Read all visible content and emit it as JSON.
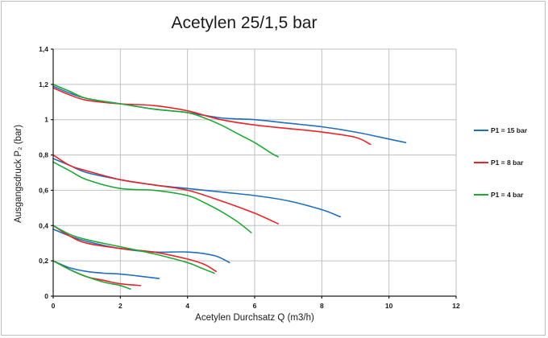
{
  "chart_data": {
    "type": "line",
    "title": "Acetylen 25/1,5 bar",
    "xlabel": "Acetylen Durchsatz Q (m3/h)",
    "ylabel": "Ausgangsdruck P₂ (bar)",
    "xlim": [
      0,
      12
    ],
    "ylim": [
      0,
      1.4
    ],
    "xticks": [
      0,
      2,
      4,
      6,
      8,
      10,
      12
    ],
    "xtick_labels": [
      "0",
      "2",
      "4",
      "6",
      "8",
      "10",
      "12"
    ],
    "yticks": [
      0,
      0.2,
      0.4,
      0.6,
      0.8,
      1.0,
      1.2,
      1.4
    ],
    "ytick_labels": [
      "0",
      "0,2",
      "0,4",
      "0,6",
      "0,8",
      "1",
      "1,2",
      "1,4"
    ],
    "grid": true,
    "legend_position": "right",
    "series": [
      {
        "name": "P1 = 15 bar",
        "color": "#1f6fbf",
        "curves": [
          [
            [
              0,
              1.19
            ],
            [
              0.5,
              1.15
            ],
            [
              1,
              1.12
            ],
            [
              2,
              1.09
            ],
            [
              3,
              1.06
            ],
            [
              4,
              1.04
            ],
            [
              5,
              1.01
            ],
            [
              6,
              1.0
            ],
            [
              7,
              0.98
            ],
            [
              8,
              0.96
            ],
            [
              9,
              0.93
            ],
            [
              10,
              0.89
            ],
            [
              10.5,
              0.87
            ]
          ],
          [
            [
              0,
              0.78
            ],
            [
              0.5,
              0.74
            ],
            [
              1,
              0.7
            ],
            [
              2,
              0.66
            ],
            [
              3,
              0.63
            ],
            [
              4,
              0.61
            ],
            [
              5,
              0.59
            ],
            [
              6,
              0.57
            ],
            [
              7,
              0.54
            ],
            [
              8,
              0.49
            ],
            [
              8.55,
              0.45
            ]
          ],
          [
            [
              0,
              0.38
            ],
            [
              0.5,
              0.34
            ],
            [
              1,
              0.31
            ],
            [
              2,
              0.27
            ],
            [
              3,
              0.25
            ],
            [
              4,
              0.25
            ],
            [
              4.8,
              0.23
            ],
            [
              5.25,
              0.19
            ]
          ],
          [
            [
              0,
              0.2
            ],
            [
              0.5,
              0.16
            ],
            [
              1,
              0.14
            ],
            [
              1.5,
              0.13
            ],
            [
              2,
              0.125
            ],
            [
              2.5,
              0.115
            ],
            [
              3.15,
              0.1
            ]
          ]
        ]
      },
      {
        "name": "P1 = 8 bar",
        "color": "#e8242a",
        "curves": [
          [
            [
              0,
              1.18
            ],
            [
              0.5,
              1.14
            ],
            [
              1,
              1.11
            ],
            [
              2,
              1.09
            ],
            [
              3,
              1.08
            ],
            [
              4,
              1.05
            ],
            [
              5,
              1.0
            ],
            [
              6,
              0.97
            ],
            [
              7,
              0.95
            ],
            [
              8,
              0.93
            ],
            [
              9,
              0.9
            ],
            [
              9.45,
              0.86
            ]
          ],
          [
            [
              0,
              0.8
            ],
            [
              0.5,
              0.74
            ],
            [
              1,
              0.71
            ],
            [
              2,
              0.66
            ],
            [
              3,
              0.63
            ],
            [
              4,
              0.6
            ],
            [
              5,
              0.54
            ],
            [
              6,
              0.47
            ],
            [
              6.7,
              0.41
            ]
          ],
          [
            [
              0,
              0.4
            ],
            [
              0.5,
              0.34
            ],
            [
              1,
              0.3
            ],
            [
              2,
              0.27
            ],
            [
              3,
              0.25
            ],
            [
              4,
              0.21
            ],
            [
              4.5,
              0.18
            ],
            [
              4.85,
              0.14
            ]
          ],
          [
            [
              0,
              0.2
            ],
            [
              0.5,
              0.15
            ],
            [
              1,
              0.11
            ],
            [
              1.5,
              0.09
            ],
            [
              2,
              0.07
            ],
            [
              2.6,
              0.06
            ]
          ]
        ]
      },
      {
        "name": "P1 = 4 bar",
        "color": "#1fa836",
        "curves": [
          [
            [
              0,
              1.2
            ],
            [
              0.5,
              1.16
            ],
            [
              1,
              1.12
            ],
            [
              2,
              1.09
            ],
            [
              3,
              1.06
            ],
            [
              4,
              1.04
            ],
            [
              4.5,
              1.01
            ],
            [
              5,
              0.97
            ],
            [
              5.5,
              0.92
            ],
            [
              6,
              0.87
            ],
            [
              6.5,
              0.81
            ],
            [
              6.7,
              0.79
            ]
          ],
          [
            [
              0,
              0.76
            ],
            [
              0.5,
              0.71
            ],
            [
              1,
              0.66
            ],
            [
              2,
              0.61
            ],
            [
              3,
              0.6
            ],
            [
              4,
              0.57
            ],
            [
              4.5,
              0.53
            ],
            [
              5,
              0.48
            ],
            [
              5.5,
              0.42
            ],
            [
              5.9,
              0.36
            ]
          ],
          [
            [
              0,
              0.4
            ],
            [
              0.5,
              0.35
            ],
            [
              1,
              0.32
            ],
            [
              2,
              0.28
            ],
            [
              3,
              0.24
            ],
            [
              4,
              0.19
            ],
            [
              4.4,
              0.16
            ],
            [
              4.8,
              0.13
            ]
          ],
          [
            [
              0,
              0.2
            ],
            [
              0.5,
              0.15
            ],
            [
              1,
              0.11
            ],
            [
              1.5,
              0.08
            ],
            [
              2,
              0.06
            ],
            [
              2.3,
              0.04
            ]
          ]
        ]
      }
    ]
  }
}
